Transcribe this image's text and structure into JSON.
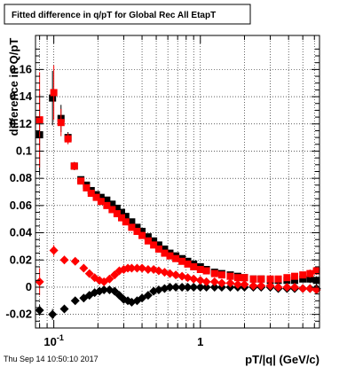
{
  "chart_data": {
    "type": "scatter",
    "title": "Fitted difference in q/pT for Global Rec All EtapT",
    "xlabel": "pT/|q| (GeV/c)",
    "ylabel": "difference in Q/pT",
    "x_scale": "log",
    "xlim": [
      0.075,
      6.5
    ],
    "ylim": [
      -0.03,
      0.185
    ],
    "grid": true,
    "x_ticks": [
      {
        "value": 0.1,
        "base": "10",
        "exp": "-1"
      },
      {
        "value": 1,
        "label": "1"
      }
    ],
    "y_ticks": [
      {
        "value": -0.02,
        "label": "-0.02"
      },
      {
        "value": 0,
        "label": "0"
      },
      {
        "value": 0.02,
        "label": "0.02"
      },
      {
        "value": 0.04,
        "label": "0.04"
      },
      {
        "value": 0.06,
        "label": "0.06"
      },
      {
        "value": 0.08,
        "label": "0.08"
      },
      {
        "value": 0.1,
        "label": "0.1"
      },
      {
        "value": 0.12,
        "label": "0.12"
      },
      {
        "value": 0.14,
        "label": "0.14"
      },
      {
        "value": 0.16,
        "label": "0.16"
      }
    ],
    "series": [
      {
        "color": "#000000",
        "marker": "square",
        "points": [
          [
            0.08,
            0.112,
            0.03
          ],
          [
            0.098,
            0.139,
            0.02
          ],
          [
            0.112,
            0.124,
            0.01
          ],
          [
            0.125,
            0.11,
            0.004
          ],
          [
            0.138,
            0.089,
            0.003
          ],
          [
            0.153,
            0.079,
            0.002
          ],
          [
            0.167,
            0.075,
            0.002
          ],
          [
            0.18,
            0.071,
            0.002
          ],
          [
            0.195,
            0.068,
            0.002
          ],
          [
            0.21,
            0.066,
            0.002
          ],
          [
            0.23,
            0.064,
            0.002
          ],
          [
            0.25,
            0.061,
            0.002
          ],
          [
            0.27,
            0.058,
            0.002
          ],
          [
            0.29,
            0.055,
            0.002
          ],
          [
            0.31,
            0.052,
            0.002
          ],
          [
            0.34,
            0.048,
            0.002
          ],
          [
            0.37,
            0.044,
            0.002
          ],
          [
            0.4,
            0.041,
            0.002
          ],
          [
            0.44,
            0.037,
            0.002
          ],
          [
            0.48,
            0.034,
            0.002
          ],
          [
            0.52,
            0.031,
            0.002
          ],
          [
            0.57,
            0.028,
            0.002
          ],
          [
            0.62,
            0.025,
            0.002
          ],
          [
            0.68,
            0.023,
            0.002
          ],
          [
            0.75,
            0.021,
            0.002
          ],
          [
            0.82,
            0.019,
            0.002
          ],
          [
            0.9,
            0.017,
            0.002
          ],
          [
            1.0,
            0.015,
            0.002
          ],
          [
            1.1,
            0.013,
            0.002
          ],
          [
            1.25,
            0.011,
            0.002
          ],
          [
            1.4,
            0.01,
            0.002
          ],
          [
            1.6,
            0.009,
            0.002
          ],
          [
            1.8,
            0.008,
            0.002
          ],
          [
            2.0,
            0.007,
            0.002
          ],
          [
            2.3,
            0.006,
            0.002
          ],
          [
            2.6,
            0.006,
            0.002
          ],
          [
            3.0,
            0.005,
            0.002
          ],
          [
            3.4,
            0.005,
            0.002
          ],
          [
            3.9,
            0.005,
            0.002
          ],
          [
            4.4,
            0.005,
            0.002
          ],
          [
            5.0,
            0.006,
            0.002
          ],
          [
            5.6,
            0.006,
            0.003
          ],
          [
            6.2,
            0.005,
            0.003
          ]
        ]
      },
      {
        "color": "#ff0000",
        "marker": "square",
        "points": [
          [
            0.08,
            0.123,
            0.035
          ],
          [
            0.1,
            0.143,
            0.02
          ],
          [
            0.112,
            0.121,
            0.01
          ],
          [
            0.125,
            0.109,
            0.004
          ],
          [
            0.138,
            0.089,
            0.003
          ],
          [
            0.153,
            0.078,
            0.002
          ],
          [
            0.167,
            0.073,
            0.002
          ],
          [
            0.18,
            0.069,
            0.002
          ],
          [
            0.195,
            0.066,
            0.002
          ],
          [
            0.21,
            0.063,
            0.002
          ],
          [
            0.23,
            0.06,
            0.002
          ],
          [
            0.25,
            0.057,
            0.002
          ],
          [
            0.27,
            0.054,
            0.002
          ],
          [
            0.29,
            0.051,
            0.002
          ],
          [
            0.31,
            0.048,
            0.002
          ],
          [
            0.34,
            0.044,
            0.002
          ],
          [
            0.37,
            0.041,
            0.002
          ],
          [
            0.4,
            0.038,
            0.002
          ],
          [
            0.44,
            0.034,
            0.002
          ],
          [
            0.48,
            0.031,
            0.002
          ],
          [
            0.52,
            0.028,
            0.002
          ],
          [
            0.57,
            0.025,
            0.002
          ],
          [
            0.62,
            0.023,
            0.002
          ],
          [
            0.68,
            0.021,
            0.002
          ],
          [
            0.75,
            0.019,
            0.002
          ],
          [
            0.82,
            0.017,
            0.002
          ],
          [
            0.9,
            0.015,
            0.002
          ],
          [
            1.0,
            0.013,
            0.002
          ],
          [
            1.1,
            0.012,
            0.002
          ],
          [
            1.25,
            0.01,
            0.002
          ],
          [
            1.4,
            0.009,
            0.002
          ],
          [
            1.6,
            0.008,
            0.002
          ],
          [
            1.8,
            0.007,
            0.002
          ],
          [
            2.0,
            0.007,
            0.002
          ],
          [
            2.3,
            0.006,
            0.002
          ],
          [
            2.6,
            0.006,
            0.002
          ],
          [
            3.0,
            0.006,
            0.002
          ],
          [
            3.4,
            0.006,
            0.002
          ],
          [
            3.9,
            0.007,
            0.002
          ],
          [
            4.4,
            0.008,
            0.002
          ],
          [
            5.0,
            0.009,
            0.002
          ],
          [
            5.6,
            0.01,
            0.003
          ],
          [
            6.2,
            0.012,
            0.003
          ]
        ]
      },
      {
        "color": "#000000",
        "marker": "diamond",
        "points": [
          [
            0.08,
            -0.017,
            0.004
          ],
          [
            0.098,
            -0.02,
            0.004
          ],
          [
            0.118,
            -0.016,
            0.003
          ],
          [
            0.14,
            -0.01,
            0.002
          ],
          [
            0.16,
            -0.008,
            0.002
          ],
          [
            0.175,
            -0.006,
            0.001
          ],
          [
            0.19,
            -0.004,
            0.001
          ],
          [
            0.205,
            -0.003,
            0.001
          ],
          [
            0.22,
            -0.002,
            0.001
          ],
          [
            0.24,
            -0.002,
            0.001
          ],
          [
            0.26,
            -0.003,
            0.001
          ],
          [
            0.28,
            -0.006,
            0.001
          ],
          [
            0.3,
            -0.009,
            0.001
          ],
          [
            0.32,
            -0.01,
            0.001
          ],
          [
            0.34,
            -0.011,
            0.001
          ],
          [
            0.37,
            -0.01,
            0.001
          ],
          [
            0.4,
            -0.008,
            0.001
          ],
          [
            0.44,
            -0.006,
            0.001
          ],
          [
            0.48,
            -0.003,
            0.001
          ],
          [
            0.52,
            -0.002,
            0.001
          ],
          [
            0.57,
            -0.001,
            0.001
          ],
          [
            0.62,
            0.0,
            0.001
          ],
          [
            0.68,
            0.0,
            0.001
          ],
          [
            0.75,
            0.0,
            0.001
          ],
          [
            0.82,
            0.0,
            0.001
          ],
          [
            0.9,
            0.0,
            0.001
          ],
          [
            1.0,
            0.0,
            0.001
          ],
          [
            1.1,
            0.0,
            0.001
          ],
          [
            1.25,
            0.0,
            0.001
          ],
          [
            1.4,
            0.0,
            0.001
          ],
          [
            1.6,
            0.0,
            0.001
          ],
          [
            1.8,
            0.0,
            0.001
          ],
          [
            2.0,
            0.0,
            0.001
          ],
          [
            2.3,
            0.0,
            0.001
          ],
          [
            2.6,
            0.0,
            0.001
          ],
          [
            3.0,
            0.0,
            0.001
          ],
          [
            3.4,
            -0.001,
            0.001
          ],
          [
            3.9,
            -0.001,
            0.001
          ],
          [
            4.4,
            -0.001,
            0.001
          ],
          [
            5.0,
            -0.001,
            0.001
          ],
          [
            5.6,
            -0.001,
            0.001
          ],
          [
            6.2,
            -0.001,
            0.002
          ]
        ]
      },
      {
        "color": "#ff0000",
        "marker": "diamond",
        "points": [
          [
            0.08,
            0.004,
            0.01
          ],
          [
            0.1,
            0.027,
            0.004
          ],
          [
            0.118,
            0.02,
            0.003
          ],
          [
            0.14,
            0.019,
            0.002
          ],
          [
            0.16,
            0.014,
            0.002
          ],
          [
            0.175,
            0.01,
            0.001
          ],
          [
            0.19,
            0.007,
            0.001
          ],
          [
            0.205,
            0.005,
            0.001
          ],
          [
            0.22,
            0.004,
            0.001
          ],
          [
            0.24,
            0.006,
            0.001
          ],
          [
            0.26,
            0.009,
            0.001
          ],
          [
            0.28,
            0.012,
            0.001
          ],
          [
            0.3,
            0.013,
            0.001
          ],
          [
            0.32,
            0.014,
            0.001
          ],
          [
            0.34,
            0.014,
            0.001
          ],
          [
            0.37,
            0.014,
            0.001
          ],
          [
            0.4,
            0.014,
            0.001
          ],
          [
            0.44,
            0.013,
            0.001
          ],
          [
            0.48,
            0.013,
            0.001
          ],
          [
            0.52,
            0.012,
            0.001
          ],
          [
            0.57,
            0.011,
            0.001
          ],
          [
            0.62,
            0.01,
            0.001
          ],
          [
            0.68,
            0.009,
            0.001
          ],
          [
            0.75,
            0.008,
            0.001
          ],
          [
            0.82,
            0.007,
            0.001
          ],
          [
            0.9,
            0.006,
            0.001
          ],
          [
            1.0,
            0.005,
            0.001
          ],
          [
            1.1,
            0.004,
            0.001
          ],
          [
            1.25,
            0.004,
            0.001
          ],
          [
            1.4,
            0.003,
            0.001
          ],
          [
            1.6,
            0.003,
            0.001
          ],
          [
            1.8,
            0.002,
            0.001
          ],
          [
            2.0,
            0.002,
            0.001
          ],
          [
            2.3,
            0.001,
            0.001
          ],
          [
            2.6,
            0.001,
            0.001
          ],
          [
            3.0,
            0.001,
            0.001
          ],
          [
            3.4,
            0.0,
            0.001
          ],
          [
            3.9,
            0.0,
            0.001
          ],
          [
            4.4,
            0.0,
            0.001
          ],
          [
            5.0,
            -0.001,
            0.001
          ],
          [
            5.6,
            -0.001,
            0.001
          ],
          [
            6.2,
            -0.002,
            0.002
          ]
        ]
      }
    ]
  },
  "footer": {
    "timestamp": "Thu Sep 14 10:50:10 2017"
  }
}
